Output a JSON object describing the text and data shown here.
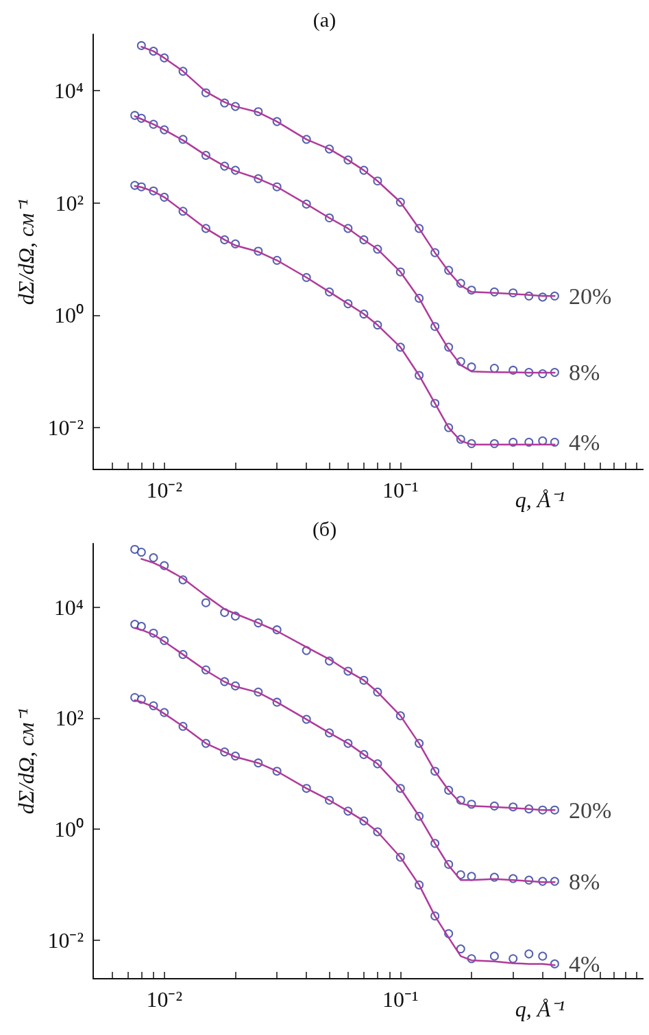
{
  "chart_data": [
    {
      "type": "scatter",
      "title": "(а)",
      "xlabel": "q, Å⁻¹",
      "ylabel": "dΣ/dΩ, см⁻¹",
      "log": "xy",
      "grid": false,
      "legend": false,
      "marker": "circle",
      "line_style": "solid",
      "xlim": [
        0.005,
        1.07
      ],
      "ylim": [
        0.0018,
        100000
      ],
      "xticks": [
        {
          "value": 0.006,
          "label": null
        },
        {
          "value": 0.007,
          "label": null
        },
        {
          "value": 0.008,
          "label": null
        },
        {
          "value": 0.009,
          "label": null
        },
        {
          "value": 0.01,
          "label": "10⁻²"
        },
        {
          "value": 0.02,
          "label": null
        },
        {
          "value": 0.03,
          "label": null
        },
        {
          "value": 0.04,
          "label": null
        },
        {
          "value": 0.05,
          "label": null
        },
        {
          "value": 0.06,
          "label": null
        },
        {
          "value": 0.07,
          "label": null
        },
        {
          "value": 0.08,
          "label": null
        },
        {
          "value": 0.09,
          "label": null
        },
        {
          "value": 0.1,
          "label": "10⁻¹"
        },
        {
          "value": 0.2,
          "label": null
        },
        {
          "value": 0.3,
          "label": null
        },
        {
          "value": 0.4,
          "label": null
        },
        {
          "value": 0.5,
          "label": null
        },
        {
          "value": 0.6,
          "label": null
        },
        {
          "value": 0.7,
          "label": null
        },
        {
          "value": 0.8,
          "label": null
        },
        {
          "value": 0.9,
          "label": null
        },
        {
          "value": 1,
          "label": null
        }
      ],
      "yticks": [
        {
          "value": 0.01,
          "label": "10⁻²"
        },
        {
          "value": 1,
          "label": "10⁰"
        },
        {
          "value": 100,
          "label": "10²"
        },
        {
          "value": 10000,
          "label": "10⁴"
        }
      ],
      "x": [
        0.0075,
        0.008,
        0.009,
        0.01,
        0.012,
        0.015,
        0.018,
        0.02,
        0.025,
        0.03,
        0.04,
        0.05,
        0.06,
        0.07,
        0.08,
        0.1,
        0.12,
        0.14,
        0.16,
        0.18,
        0.2,
        0.25,
        0.3,
        0.35,
        0.4,
        0.45
      ],
      "series": [
        {
          "name": "20%",
          "color": "#2b3a9c",
          "values": [
            null,
            63000,
            50000,
            38000,
            22000,
            9100,
            6000,
            5200,
            4200,
            2800,
            1350,
            910,
            580,
            380,
            245,
            103,
            35,
            13,
            6.3,
            3.7,
            2.8,
            2.6,
            2.5,
            2.2,
            2.1,
            2.2
          ]
        },
        {
          "name": "8%",
          "color": "#2b3a9c",
          "values": [
            3600,
            3200,
            2500,
            2000,
            1350,
            700,
            450,
            380,
            270,
            193,
            95,
            54,
            35,
            22,
            15,
            5.9,
            2.0,
            0.63,
            0.27,
            0.15,
            0.12,
            0.114,
            0.105,
            0.096,
            0.091,
            0.096
          ]
        },
        {
          "name": "4%",
          "color": "#2b3a9c",
          "values": [
            205,
            193,
            163,
            126,
            71,
            35,
            22,
            18.6,
            13.8,
            9.5,
            4.7,
            2.6,
            1.6,
            1.05,
            0.67,
            0.27,
            0.085,
            0.027,
            0.01,
            0.0062,
            0.0052,
            0.0052,
            0.0055,
            0.0055,
            0.0058,
            0.0055
          ]
        },
        {
          "type": "line",
          "marker": "none",
          "color": "#b03a9a",
          "values": [
            null,
            60000,
            50000,
            38000,
            22000,
            9500,
            6200,
            5200,
            4100,
            2800,
            1350,
            910,
            580,
            380,
            245,
            103,
            35,
            13,
            6.0,
            3.4,
            2.6,
            2.5,
            2.4,
            2.3,
            2.2,
            2.2
          ]
        },
        {
          "type": "line",
          "marker": "none",
          "color": "#b03a9a",
          "values": [
            3500,
            3100,
            2500,
            2000,
            1300,
            700,
            450,
            370,
            270,
            193,
            95,
            54,
            35,
            22,
            15,
            5.9,
            2.0,
            0.63,
            0.25,
            0.13,
            0.1,
            0.097,
            0.096,
            0.095,
            0.095,
            0.095
          ]
        },
        {
          "type": "line",
          "marker": "none",
          "color": "#b03a9a",
          "values": [
            200,
            190,
            160,
            126,
            71,
            35,
            22,
            17.5,
            13.5,
            9.5,
            4.7,
            2.6,
            1.6,
            1.05,
            0.67,
            0.27,
            0.085,
            0.027,
            0.01,
            0.0058,
            0.005,
            0.005,
            0.005,
            0.005,
            0.005,
            0.005
          ]
        }
      ]
    },
    {
      "type": "scatter",
      "title": "(б)",
      "xlabel": "q, Å⁻¹",
      "ylabel": "dΣ/dΩ, см⁻¹",
      "log": "xy",
      "grid": false,
      "legend": false,
      "marker": "circle",
      "line_style": "solid",
      "xlim": [
        0.005,
        1.07
      ],
      "ylim": [
        0.002,
        140000
      ],
      "xticks": [
        {
          "value": 0.006,
          "label": null
        },
        {
          "value": 0.007,
          "label": null
        },
        {
          "value": 0.008,
          "label": null
        },
        {
          "value": 0.009,
          "label": null
        },
        {
          "value": 0.01,
          "label": "10⁻²"
        },
        {
          "value": 0.02,
          "label": null
        },
        {
          "value": 0.03,
          "label": null
        },
        {
          "value": 0.04,
          "label": null
        },
        {
          "value": 0.05,
          "label": null
        },
        {
          "value": 0.06,
          "label": null
        },
        {
          "value": 0.07,
          "label": null
        },
        {
          "value": 0.08,
          "label": null
        },
        {
          "value": 0.09,
          "label": null
        },
        {
          "value": 0.1,
          "label": "10⁻¹"
        },
        {
          "value": 0.2,
          "label": null
        },
        {
          "value": 0.3,
          "label": null
        },
        {
          "value": 0.4,
          "label": null
        },
        {
          "value": 0.5,
          "label": null
        },
        {
          "value": 0.6,
          "label": null
        },
        {
          "value": 0.7,
          "label": null
        },
        {
          "value": 0.8,
          "label": null
        },
        {
          "value": 0.9,
          "label": null
        },
        {
          "value": 1,
          "label": null
        }
      ],
      "yticks": [
        {
          "value": 0.01,
          "label": "10⁻²"
        },
        {
          "value": 1,
          "label": "10⁰"
        },
        {
          "value": 100,
          "label": "10²"
        },
        {
          "value": 10000,
          "label": "10⁴"
        }
      ],
      "x": [
        0.0075,
        0.008,
        0.009,
        0.01,
        0.012,
        0.015,
        0.018,
        0.02,
        0.025,
        0.03,
        0.04,
        0.05,
        0.06,
        0.07,
        0.08,
        0.1,
        0.12,
        0.14,
        0.16,
        0.18,
        0.2,
        0.25,
        0.3,
        0.35,
        0.4,
        0.45
      ],
      "series": [
        {
          "name": "20%",
          "color": "#2b3a9c",
          "values": [
            110000,
            98000,
            78000,
            56000,
            31000,
            12000,
            8000,
            6900,
            5200,
            3900,
            1650,
            1070,
            700,
            480,
            295,
            110,
            35,
            11,
            5.0,
            3.3,
            2.8,
            2.6,
            2.5,
            2.3,
            2.2,
            2.2
          ]
        },
        {
          "name": "8%",
          "color": "#2b3a9c",
          "values": [
            4900,
            4500,
            3400,
            2500,
            1400,
            740,
            455,
            380,
            295,
            193,
            95,
            54,
            35,
            22,
            15,
            5.4,
            1.7,
            0.55,
            0.23,
            0.15,
            0.14,
            0.135,
            0.128,
            0.12,
            0.114,
            0.114
          ]
        },
        {
          "name": "4%",
          "color": "#2b3a9c",
          "values": [
            235,
            218,
            167,
            126,
            71,
            35,
            24.5,
            20.7,
            15.5,
            11,
            5.4,
            3.3,
            2.1,
            1.4,
            0.89,
            0.31,
            0.098,
            0.027,
            0.013,
            0.0069,
            0.0046,
            0.0051,
            0.0046,
            0.0056,
            0.0051,
            0.0037
          ]
        },
        {
          "type": "line",
          "marker": "none",
          "color": "#b03a9a",
          "values": [
            null,
            74000,
            63000,
            51000,
            33000,
            16000,
            9200,
            7600,
            5200,
            3700,
            1900,
            1150,
            700,
            480,
            295,
            110,
            35,
            11,
            5.0,
            2.9,
            2.6,
            2.5,
            2.4,
            2.3,
            2.2,
            2.2
          ]
        },
        {
          "type": "line",
          "marker": "none",
          "color": "#b03a9a",
          "values": [
            4200,
            3900,
            3200,
            2400,
            1400,
            720,
            450,
            370,
            290,
            193,
            95,
            54,
            35,
            22,
            15,
            5.4,
            1.7,
            0.55,
            0.22,
            0.12,
            0.12,
            0.125,
            0.12,
            0.115,
            0.11,
            0.11
          ]
        },
        {
          "type": "line",
          "marker": "none",
          "color": "#b03a9a",
          "values": [
            210,
            195,
            160,
            120,
            71,
            35,
            24.5,
            20,
            15.5,
            11,
            5.4,
            3.3,
            2.1,
            1.4,
            0.89,
            0.31,
            0.098,
            0.027,
            0.011,
            0.0051,
            0.0043,
            0.0041,
            0.0038,
            0.0037,
            0.0037,
            0.0035
          ]
        }
      ]
    }
  ]
}
